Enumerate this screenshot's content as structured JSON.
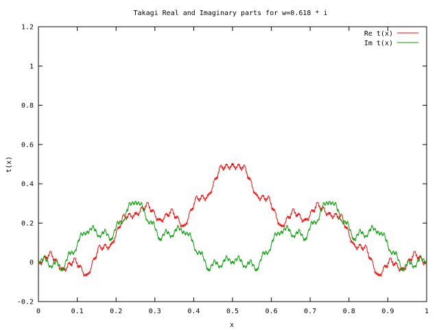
{
  "chart_data": {
    "type": "line",
    "title": "Takagi Real and Imaginary parts for w=0.618 * i",
    "xlabel": "x",
    "ylabel": "t(x)",
    "xlim": [
      0,
      1
    ],
    "ylim": [
      -0.2,
      1.2
    ],
    "xticks": [
      0,
      0.1,
      0.2,
      0.3,
      0.4,
      0.5,
      0.6,
      0.7,
      0.8,
      0.9,
      1
    ],
    "xtick_labels": [
      "0",
      "0.1",
      "0.2",
      "0.3",
      "0.4",
      "0.5",
      "0.6",
      "0.7",
      "0.8",
      "0.9",
      "1"
    ],
    "yticks": [
      -0.2,
      0,
      0.2,
      0.4,
      0.6,
      0.8,
      1,
      1.2
    ],
    "ytick_labels": [
      "-0.2",
      "0",
      "0.2",
      "0.4",
      "0.6",
      "0.8",
      "1",
      "1.2"
    ],
    "grid": false,
    "legend_position": "top-right",
    "function": {
      "w": 0.618,
      "levels": 18,
      "samples": 2000
    },
    "series": [
      {
        "name": "Re t(x)",
        "part": "real",
        "color": "#ff0000"
      },
      {
        "name": "Im t(x)",
        "part": "imaginary",
        "color": "#00a000"
      }
    ]
  }
}
